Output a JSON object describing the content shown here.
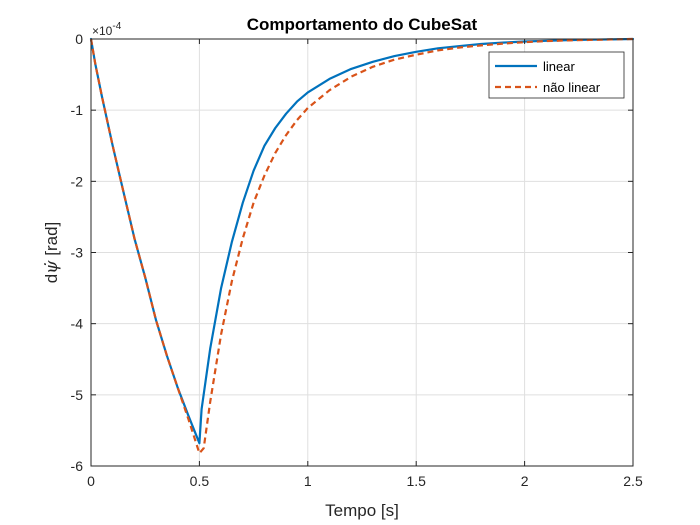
{
  "chart_data": {
    "type": "line",
    "title": "Comportamento do CubeSat",
    "xlabel": "Tempo [s]",
    "ylabel_prefix": "d",
    "ylabel_symbol": "ψ̇",
    "ylabel_suffix": " [rad]",
    "y_exponent_base": "×10",
    "y_exponent": "-4",
    "xlim": [
      0,
      2.5
    ],
    "ylim": [
      -6,
      0
    ],
    "xticks": [
      0,
      0.5,
      1,
      1.5,
      2,
      2.5
    ],
    "xtick_labels": [
      "0",
      "0.5",
      "1",
      "1.5",
      "2",
      "2.5"
    ],
    "yticks": [
      0,
      -1,
      -2,
      -3,
      -4,
      -5,
      -6
    ],
    "ytick_labels": [
      "0",
      "-1",
      "-2",
      "-3",
      "-4",
      "-5",
      "-6"
    ],
    "grid": true,
    "legend_position": "top-right",
    "series": [
      {
        "name": "linear",
        "color": "#0072BD",
        "style": "solid",
        "x": [
          0,
          0.02,
          0.05,
          0.1,
          0.15,
          0.2,
          0.25,
          0.3,
          0.35,
          0.4,
          0.45,
          0.5,
          0.51,
          0.55,
          0.6,
          0.65,
          0.7,
          0.75,
          0.8,
          0.85,
          0.9,
          0.95,
          1.0,
          1.1,
          1.2,
          1.3,
          1.4,
          1.5,
          1.6,
          1.7,
          1.8,
          1.9,
          2.0,
          2.1,
          2.2,
          2.3,
          2.4,
          2.5
        ],
        "y": [
          0,
          -0.35,
          -0.8,
          -1.5,
          -2.15,
          -2.8,
          -3.35,
          -3.95,
          -4.45,
          -4.9,
          -5.3,
          -5.68,
          -5.2,
          -4.35,
          -3.5,
          -2.85,
          -2.3,
          -1.85,
          -1.5,
          -1.25,
          -1.05,
          -0.88,
          -0.75,
          -0.56,
          -0.42,
          -0.32,
          -0.24,
          -0.18,
          -0.13,
          -0.1,
          -0.07,
          -0.05,
          -0.035,
          -0.025,
          -0.015,
          -0.01,
          -0.005,
          0
        ]
      },
      {
        "name": "não linear",
        "color": "#D95319",
        "style": "dashed",
        "x": [
          0,
          0.02,
          0.05,
          0.1,
          0.15,
          0.2,
          0.25,
          0.3,
          0.35,
          0.4,
          0.45,
          0.5,
          0.52,
          0.55,
          0.6,
          0.65,
          0.7,
          0.75,
          0.8,
          0.85,
          0.9,
          0.95,
          1.0,
          1.1,
          1.2,
          1.3,
          1.4,
          1.5,
          1.6,
          1.7,
          1.8,
          1.9,
          2.0,
          2.1,
          2.2,
          2.3,
          2.4,
          2.5
        ],
        "y": [
          0,
          -0.35,
          -0.8,
          -1.5,
          -2.15,
          -2.8,
          -3.35,
          -3.95,
          -4.45,
          -4.9,
          -5.35,
          -5.82,
          -5.75,
          -5.1,
          -4.15,
          -3.4,
          -2.8,
          -2.3,
          -1.92,
          -1.6,
          -1.35,
          -1.14,
          -0.97,
          -0.72,
          -0.53,
          -0.39,
          -0.29,
          -0.22,
          -0.16,
          -0.12,
          -0.09,
          -0.065,
          -0.045,
          -0.03,
          -0.02,
          -0.012,
          -0.006,
          0
        ]
      }
    ]
  }
}
